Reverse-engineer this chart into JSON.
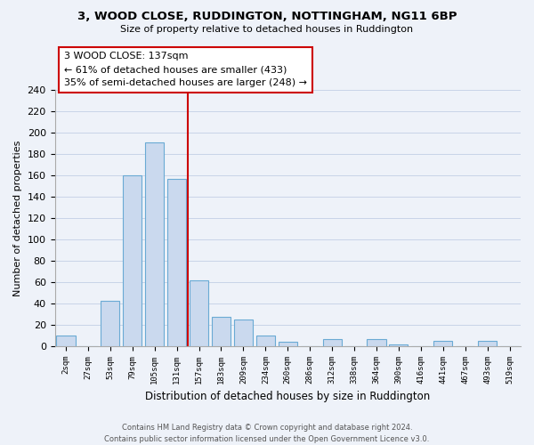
{
  "title_line1": "3, WOOD CLOSE, RUDDINGTON, NOTTINGHAM, NG11 6BP",
  "title_line2": "Size of property relative to detached houses in Ruddington",
  "xlabel": "Distribution of detached houses by size in Ruddington",
  "ylabel": "Number of detached properties",
  "bar_labels": [
    "2sqm",
    "27sqm",
    "53sqm",
    "79sqm",
    "105sqm",
    "131sqm",
    "157sqm",
    "183sqm",
    "209sqm",
    "234sqm",
    "260sqm",
    "286sqm",
    "312sqm",
    "338sqm",
    "364sqm",
    "390sqm",
    "416sqm",
    "441sqm",
    "467sqm",
    "493sqm",
    "519sqm"
  ],
  "bar_values": [
    10,
    0,
    43,
    160,
    191,
    157,
    62,
    28,
    25,
    10,
    4,
    0,
    7,
    0,
    7,
    2,
    0,
    5,
    0,
    5,
    0
  ],
  "bar_color": "#cad9ee",
  "bar_edge_color": "#6aaad4",
  "vline_x": 5.5,
  "vline_color": "#cc0000",
  "annotation_text": "3 WOOD CLOSE: 137sqm\n← 61% of detached houses are smaller (433)\n35% of semi-detached houses are larger (248) →",
  "annotation_box_edge": "#cc0000",
  "ylim": [
    0,
    240
  ],
  "yticks": [
    0,
    20,
    40,
    60,
    80,
    100,
    120,
    140,
    160,
    180,
    200,
    220,
    240
  ],
  "footer_line1": "Contains HM Land Registry data © Crown copyright and database right 2024.",
  "footer_line2": "Contains public sector information licensed under the Open Government Licence v3.0.",
  "bg_color": "#eef2f9",
  "grid_color": "#c8d4e8",
  "bar_width": 0.85
}
